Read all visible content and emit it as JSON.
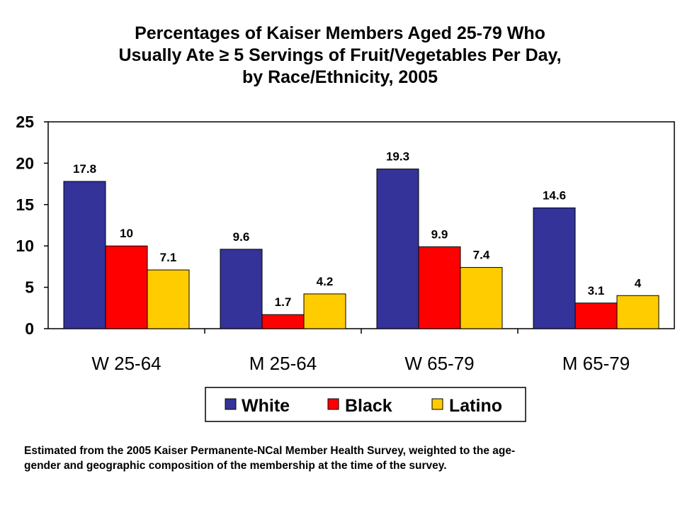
{
  "title_lines": [
    "Percentages of Kaiser Members Aged 25-79 Who",
    "Usually Ate ≥ 5 Servings of Fruit/Vegetables Per Day,",
    "by Race/Ethnicity, 2005"
  ],
  "caption_lines": [
    "Estimated from the 2005 Kaiser Permanente-NCal Member Health Survey, weighted to the age-",
    "gender and geographic composition of the membership at the time of the survey."
  ],
  "chart_data": {
    "type": "bar",
    "title": "Percentages of Kaiser Members Aged 25-79 Who Usually Ate ≥ 5 Servings of Fruit/Vegetables Per Day, by Race/Ethnicity, 2005",
    "xlabel": "",
    "ylabel": "",
    "categories": [
      "W 25-64",
      "M 25-64",
      "W 65-79",
      "M 65-79"
    ],
    "series": [
      {
        "name": "White",
        "color": "#333399",
        "values": [
          17.8,
          9.6,
          19.3,
          14.6
        ],
        "labels": [
          "17.8",
          "9.6",
          "19.3",
          "14.6"
        ]
      },
      {
        "name": "Black",
        "color": "#FF0000",
        "values": [
          10,
          1.7,
          9.9,
          3.1
        ],
        "labels": [
          "10",
          "1.7",
          "9.9",
          "3.1"
        ]
      },
      {
        "name": "Latino",
        "color": "#FFCC00",
        "values": [
          7.1,
          4.2,
          7.4,
          4
        ],
        "labels": [
          "7.1",
          "4.2",
          "7.4",
          "4"
        ]
      }
    ],
    "ylim": [
      0,
      25
    ],
    "yticks": [
      0,
      5,
      10,
      15,
      20,
      25
    ],
    "ytick_labels": [
      "0",
      "5",
      "10",
      "15",
      "20",
      "25"
    ],
    "grid": false,
    "legend_position": "bottom"
  }
}
